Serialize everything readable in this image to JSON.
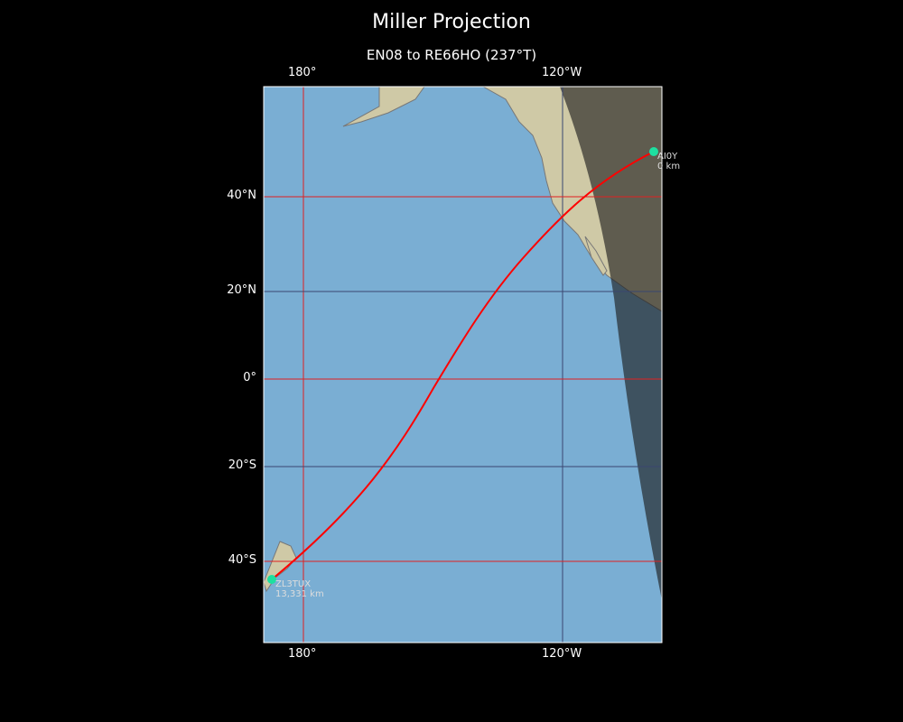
{
  "title": "Miller Projection",
  "subtitle": "EN08 to RE66HO (237°T)",
  "axes": {
    "lon_ticks": [
      "180°",
      "120°W"
    ],
    "lat_ticks": [
      "40°N",
      "20°N",
      "0°",
      "20°S",
      "40°S"
    ]
  },
  "colors": {
    "ocean": "#7aaed3",
    "land": "#d8d2b4",
    "path": "#ff0000",
    "station": "#1de0a0",
    "night_overlay": "#1a1a1a"
  },
  "stations": [
    {
      "call": "AI0Y",
      "distance": "0 km"
    },
    {
      "call": "ZL3TUX",
      "distance": "13,331 km"
    }
  ]
}
